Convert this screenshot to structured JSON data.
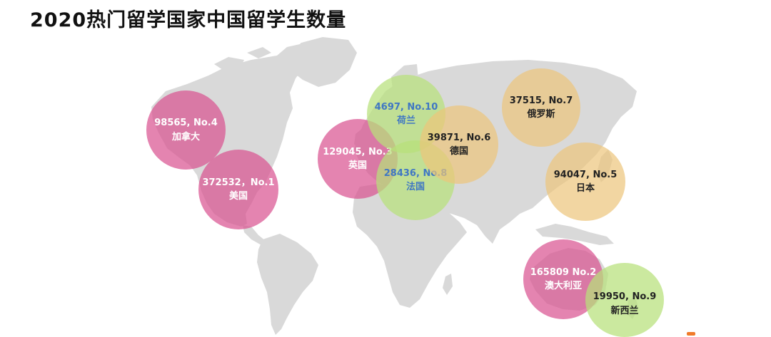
{
  "title": "2020热门留学国家中国留学生数量",
  "colors": {
    "map": "#d9d9d9",
    "rank_1_4": "#d9508f",
    "rank_5_7": "#ecc47a",
    "rank_8_10": "#b7e07a",
    "green_text": "#3f77c4"
  },
  "countries": [
    {
      "id": "usa",
      "value_label": "372532，No.1",
      "country": "美国",
      "students": 372532,
      "rank": 1
    },
    {
      "id": "australia",
      "value_label": "165809 No.2",
      "country": "澳大利亚",
      "students": 165809,
      "rank": 2
    },
    {
      "id": "uk",
      "value_label": "129045, No.3",
      "country": "英国",
      "students": 129045,
      "rank": 3
    },
    {
      "id": "canada",
      "value_label": "98565, No.4",
      "country": "加拿大",
      "students": 98565,
      "rank": 4
    },
    {
      "id": "japan",
      "value_label": "94047, No.5",
      "country": "日本",
      "students": 94047,
      "rank": 5
    },
    {
      "id": "germany",
      "value_label": "39871, No.6",
      "country": "德国",
      "students": 39871,
      "rank": 6
    },
    {
      "id": "russia",
      "value_label": "37515, No.7",
      "country": "俄罗斯",
      "students": 37515,
      "rank": 7
    },
    {
      "id": "france",
      "value_label": "28436, No.8",
      "country": "法国",
      "students": 28436,
      "rank": 8
    },
    {
      "id": "newzealand",
      "value_label": "19950, No.9",
      "country": "新西兰",
      "students": 19950,
      "rank": 9
    },
    {
      "id": "netherlands",
      "value_label": "4697, No.10",
      "country": "荷兰",
      "students": 4697,
      "rank": 10
    }
  ]
}
